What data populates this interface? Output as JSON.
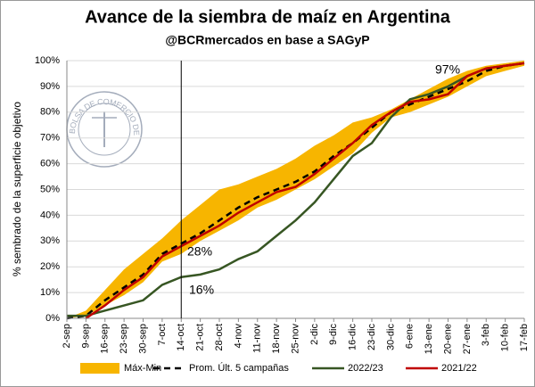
{
  "chart_data": {
    "type": "line",
    "title": "Avance de la siembra de maíz en Argentina",
    "subtitle": "@BCRmercados en base a SAGyP",
    "y_label": "% sembrado de la superficie objetivo",
    "logo_text": "BOLSA DE COMERCIO DE ROSARIO",
    "annotations": [
      "97%",
      "28%",
      "16%"
    ],
    "categories": [
      "2-sep",
      "9-sep",
      "16-sep",
      "23-sep",
      "30-sep",
      "7-oct",
      "14-oct",
      "21-oct",
      "28-oct",
      "4-nov",
      "11-nov",
      "18-nov",
      "25-nov",
      "2-dic",
      "9-dic",
      "16-dic",
      "23-dic",
      "30-dic",
      "6-ene",
      "13-ene",
      "20-ene",
      "27-ene",
      "3-feb",
      "10-feb",
      "17-feb"
    ],
    "series": [
      {
        "name": "Máx-Min",
        "type": "band",
        "color": "#f7b500",
        "low": [
          0,
          1,
          5,
          9,
          14,
          22,
          25,
          30,
          34,
          38,
          43,
          46,
          50,
          54,
          59,
          64,
          72,
          78,
          80,
          83,
          86,
          90,
          94,
          96,
          98
        ],
        "high": [
          0,
          3,
          11,
          19,
          25,
          31,
          38,
          44,
          50,
          52,
          55,
          58,
          62,
          67,
          71,
          76,
          78,
          81,
          85,
          89,
          93,
          96,
          98,
          99,
          100
        ]
      },
      {
        "name": "Prom. Últ. 5 campañas",
        "type": "dashed",
        "color": "#000000",
        "values": [
          0,
          1,
          7,
          12,
          17,
          25,
          29,
          33,
          38,
          43,
          47,
          50,
          53,
          57,
          63,
          68,
          74,
          80,
          83,
          86,
          89,
          92,
          96,
          98,
          99
        ]
      },
      {
        "name": "2022/23",
        "color": "#375623",
        "values": [
          1,
          1,
          3,
          5,
          7,
          13,
          16,
          17,
          19,
          23,
          26,
          32,
          38,
          45,
          54,
          63,
          68,
          78,
          85,
          87,
          90,
          94,
          97,
          98,
          99
        ]
      },
      {
        "name": "2021/22",
        "color": "#c00000",
        "values": [
          null,
          0,
          5,
          11,
          16,
          24,
          28,
          32,
          36,
          41,
          45,
          49,
          51,
          56,
          62,
          68,
          75,
          80,
          84,
          85,
          87,
          94,
          97,
          98,
          99
        ]
      }
    ],
    "ylim": [
      0,
      100
    ],
    "yticks": [
      {
        "value": 0,
        "label": "0%"
      },
      {
        "value": 10,
        "label": "10%"
      },
      {
        "value": 20,
        "label": "20%"
      },
      {
        "value": 30,
        "label": "30%"
      },
      {
        "value": 40,
        "label": "40%"
      },
      {
        "value": 50,
        "label": "50%"
      },
      {
        "value": 60,
        "label": "60%"
      },
      {
        "value": 70,
        "label": "70%"
      },
      {
        "value": 80,
        "label": "80%"
      },
      {
        "value": 90,
        "label": "90%"
      },
      {
        "value": 100,
        "label": "100%"
      }
    ],
    "grid": true
  }
}
